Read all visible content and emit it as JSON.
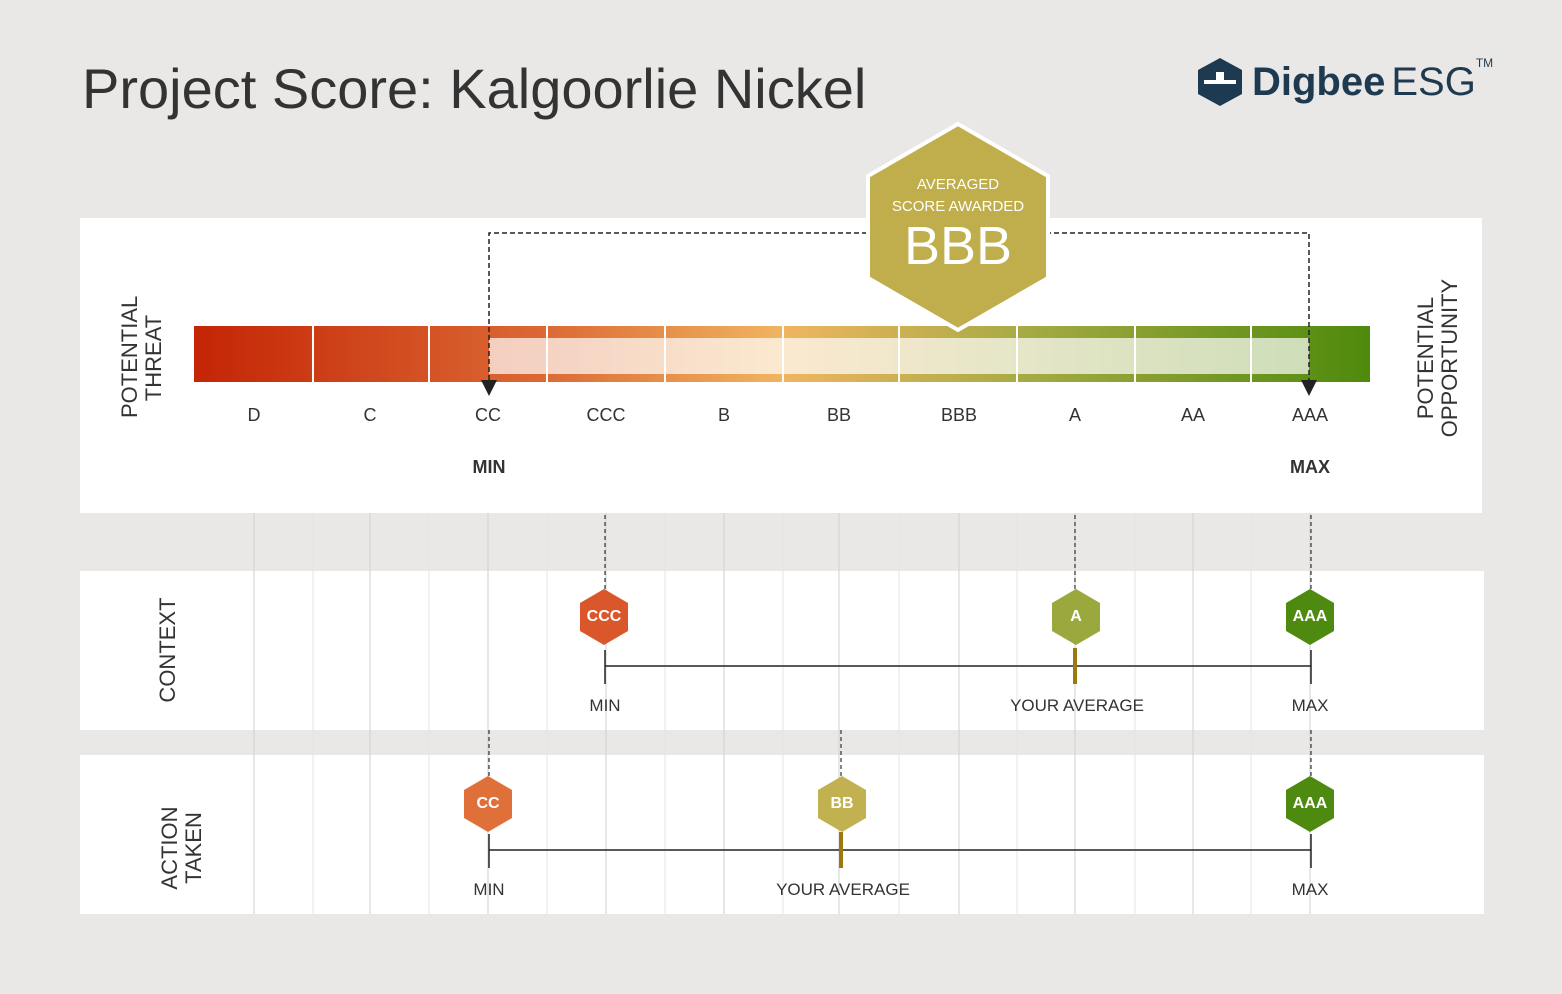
{
  "title": "Project Score: Kalgoorlie Nickel",
  "logo": {
    "brand": "Digbee",
    "suffix": "ESG",
    "tm": "TM"
  },
  "scale": {
    "grades": [
      "D",
      "C",
      "CC",
      "CCC",
      "B",
      "BB",
      "BBB",
      "A",
      "AA",
      "AAA"
    ],
    "left_label_1": "POTENTIAL",
    "left_label_2": "THREAT",
    "right_label_1": "POTENTIAL",
    "right_label_2": "OPPORTUNITY",
    "min_label": "MIN",
    "max_label": "MAX",
    "min_grade": "CC",
    "max_grade": "AAA"
  },
  "award": {
    "line1": "AVERAGED",
    "line2": "SCORE AWARDED",
    "grade": "BBB",
    "color": "#bfae4b"
  },
  "context": {
    "label": "CONTEXT",
    "min": "CCC",
    "average": "A",
    "max": "AAA",
    "min_label": "MIN",
    "avg_label": "YOUR AVERAGE",
    "max_label": "MAX"
  },
  "action": {
    "label_1": "ACTION",
    "label_2": "TAKEN",
    "min": "CC",
    "average": "BB",
    "max": "AAA",
    "min_label": "MIN",
    "avg_label": "YOUR AVERAGE",
    "max_label": "MAX"
  },
  "colors": {
    "CC": "#e0703a",
    "CCC": "#d9572b",
    "BB": "#c2b150",
    "A": "#9aa83d",
    "AAA": "#4f8a10"
  }
}
